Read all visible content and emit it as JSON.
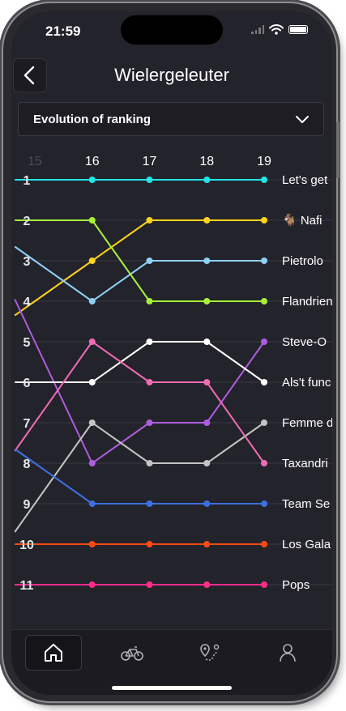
{
  "status_bar": {
    "time": "21:59"
  },
  "header": {
    "title": "Wielergeleuter",
    "back_icon": "chevron-left-icon"
  },
  "dropdown": {
    "selected": "Evolution of ranking",
    "icon": "chevron-down-icon"
  },
  "tabbar": {
    "items": [
      "home-icon",
      "bike-icon",
      "route-icon",
      "profile-icon"
    ],
    "active": 0
  },
  "chart_data": {
    "type": "line",
    "title": "",
    "xlabel": "",
    "ylabel": "",
    "x": [
      15,
      16,
      17,
      18,
      19
    ],
    "ranks": [
      1,
      2,
      3,
      4,
      5,
      6,
      7,
      8,
      9,
      10,
      11
    ],
    "y_inverted": true,
    "grid": true,
    "series": [
      {
        "name": "Let's get",
        "color": "#22e5e8",
        "values": [
          1,
          1,
          1,
          1,
          1
        ]
      },
      {
        "name": "🐐 Nafi",
        "color": "#ffd31a",
        "values": [
          4,
          3,
          2,
          2,
          2
        ]
      },
      {
        "name": "Pietrolo",
        "color": "#8fd0f5",
        "values": [
          3,
          4,
          3,
          3,
          3
        ]
      },
      {
        "name": "Flandrien",
        "color": "#a6f23a",
        "values": [
          2,
          2,
          4,
          4,
          4
        ]
      },
      {
        "name": "Steve-O",
        "color": "#b05ce0",
        "values": [
          5,
          8,
          7,
          7,
          5
        ]
      },
      {
        "name": "Als't func",
        "color": "#ffffff",
        "values": [
          6,
          6,
          5,
          5,
          6
        ]
      },
      {
        "name": "Femme d",
        "color": "#c4c4c4",
        "values": [
          9,
          7,
          8,
          8,
          7
        ]
      },
      {
        "name": "Taxandri",
        "color": "#f06bb4",
        "values": [
          7,
          5,
          6,
          6,
          8
        ]
      },
      {
        "name": "Team Se",
        "color": "#3e6fe0",
        "values": [
          8,
          9,
          9,
          9,
          9
        ]
      },
      {
        "name": "Los Gala",
        "color": "#ff4a14",
        "values": [
          10,
          10,
          10,
          10,
          10
        ]
      },
      {
        "name": "Pops",
        "color": "#ff2d8a",
        "values": [
          11,
          11,
          11,
          11,
          11
        ]
      }
    ]
  }
}
